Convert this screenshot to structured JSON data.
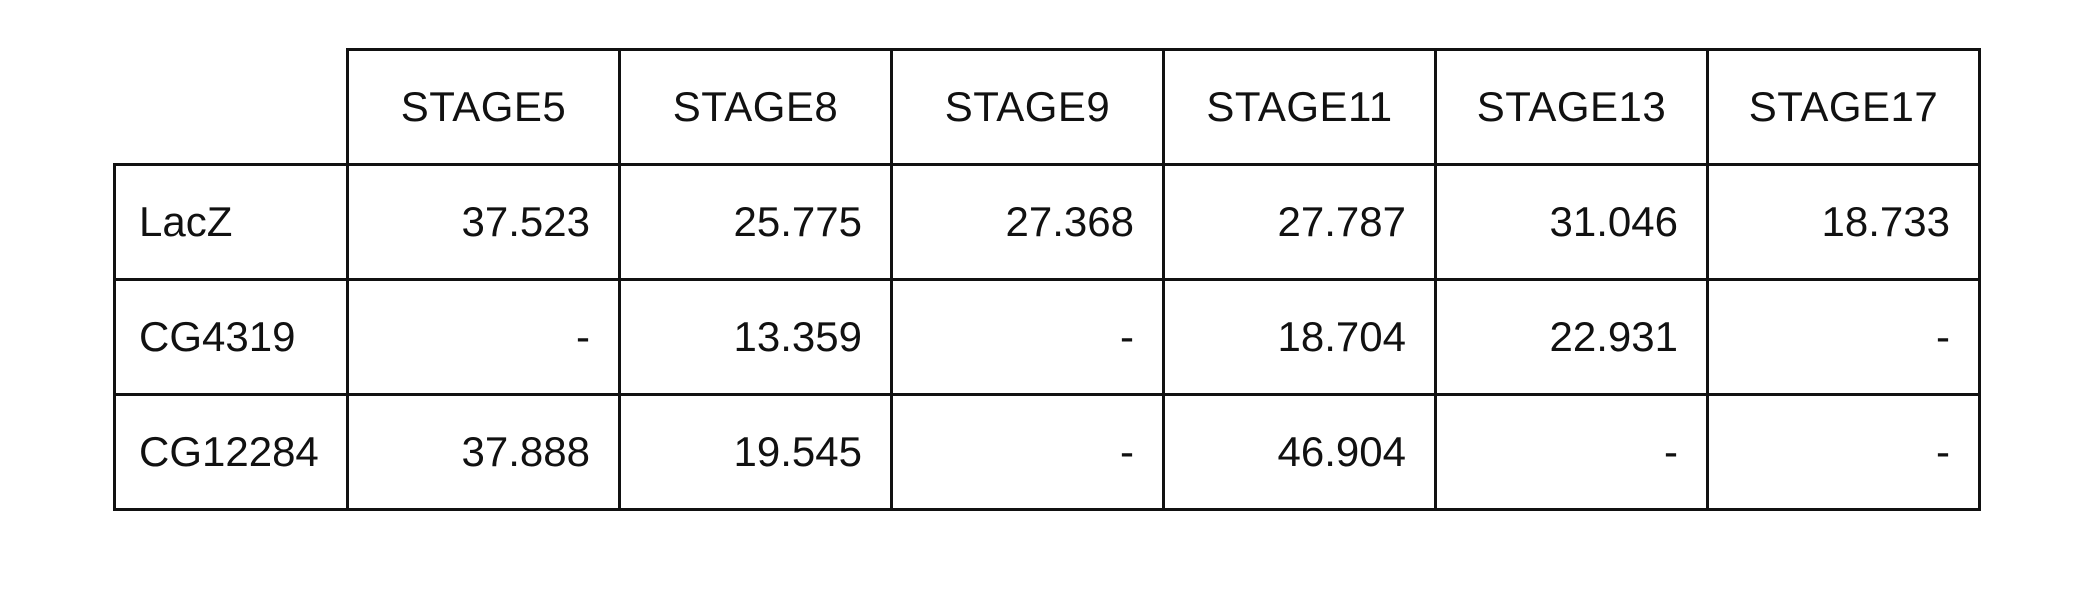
{
  "table": {
    "columns": [
      "STAGE5",
      "STAGE8",
      "STAGE9",
      "STAGE11",
      "STAGE13",
      "STAGE17"
    ],
    "rows": [
      {
        "label": "LacZ",
        "values": [
          "37.523",
          "25.775",
          "27.368",
          "27.787",
          "31.046",
          "18.733"
        ]
      },
      {
        "label": "CG4319",
        "values": [
          "-",
          "13.359",
          "-",
          "18.704",
          "22.931",
          "-"
        ]
      },
      {
        "label": "CG12284",
        "values": [
          "37.888",
          "19.545",
          "-",
          "46.904",
          "-",
          "-"
        ]
      }
    ]
  }
}
